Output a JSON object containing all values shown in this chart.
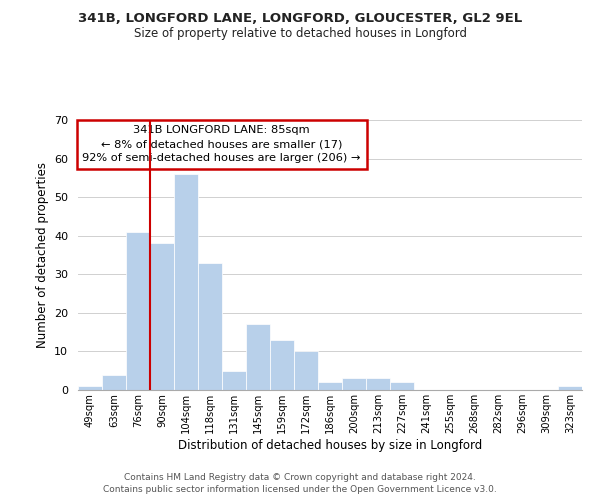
{
  "title": "341B, LONGFORD LANE, LONGFORD, GLOUCESTER, GL2 9EL",
  "subtitle": "Size of property relative to detached houses in Longford",
  "xlabel": "Distribution of detached houses by size in Longford",
  "ylabel": "Number of detached properties",
  "footer_line1": "Contains HM Land Registry data © Crown copyright and database right 2024.",
  "footer_line2": "Contains public sector information licensed under the Open Government Licence v3.0.",
  "bin_labels": [
    "49sqm",
    "63sqm",
    "76sqm",
    "90sqm",
    "104sqm",
    "118sqm",
    "131sqm",
    "145sqm",
    "159sqm",
    "172sqm",
    "186sqm",
    "200sqm",
    "213sqm",
    "227sqm",
    "241sqm",
    "255sqm",
    "268sqm",
    "282sqm",
    "296sqm",
    "309sqm",
    "323sqm"
  ],
  "bar_heights": [
    1,
    4,
    41,
    38,
    56,
    33,
    5,
    17,
    13,
    10,
    2,
    3,
    3,
    2,
    0,
    0,
    0,
    0,
    0,
    0,
    1
  ],
  "bar_color": "#b8d0ea",
  "bar_edge_color": "#b8d0ea",
  "vline_color": "#cc0000",
  "ylim": [
    0,
    70
  ],
  "yticks": [
    0,
    10,
    20,
    30,
    40,
    50,
    60,
    70
  ],
  "annotation_title": "341B LONGFORD LANE: 85sqm",
  "annotation_line1": "← 8% of detached houses are smaller (17)",
  "annotation_line2": "92% of semi-detached houses are larger (206) →",
  "annotation_box_color": "#ffffff",
  "annotation_box_edge_color": "#cc0000",
  "background_color": "#ffffff",
  "grid_color": "#d0d0d0"
}
